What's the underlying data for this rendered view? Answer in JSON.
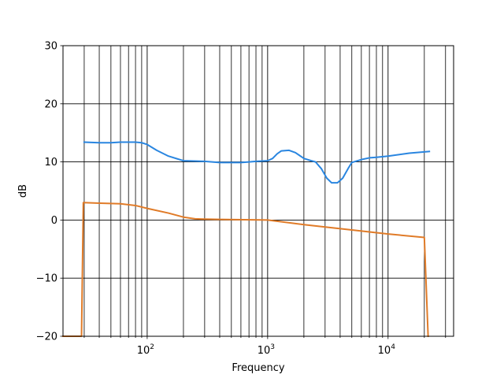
{
  "chart_data": {
    "type": "line",
    "title": "",
    "xlabel": "Frequency",
    "ylabel": "dB",
    "x_scale": "log",
    "xlim": [
      20,
      35000
    ],
    "ylim": [
      -20,
      30
    ],
    "yticks": [
      -20,
      -10,
      0,
      10,
      20,
      30
    ],
    "ytick_labels": [
      "−20",
      "−10",
      "0",
      "10",
      "20",
      "30"
    ],
    "xticks": [
      100,
      1000,
      10000
    ],
    "xtick_labels": [
      {
        "base": "10",
        "exp": "2"
      },
      {
        "base": "10",
        "exp": "3"
      },
      {
        "base": "10",
        "exp": "4"
      }
    ],
    "grid": "major and minor, black",
    "legend": "none",
    "series": [
      {
        "color": "#2a86e0",
        "points": [
          [
            30,
            13.4
          ],
          [
            40,
            13.3
          ],
          [
            50,
            13.3
          ],
          [
            60,
            13.4
          ],
          [
            70,
            13.4
          ],
          [
            80,
            13.4
          ],
          [
            90,
            13.3
          ],
          [
            100,
            13.0
          ],
          [
            120,
            12.0
          ],
          [
            150,
            11.0
          ],
          [
            200,
            10.2
          ],
          [
            300,
            10.1
          ],
          [
            400,
            9.9
          ],
          [
            500,
            9.9
          ],
          [
            600,
            9.9
          ],
          [
            700,
            10.0
          ],
          [
            800,
            10.1
          ],
          [
            1000,
            10.2
          ],
          [
            1100,
            10.6
          ],
          [
            1200,
            11.4
          ],
          [
            1300,
            11.9
          ],
          [
            1500,
            12.0
          ],
          [
            1700,
            11.6
          ],
          [
            2000,
            10.6
          ],
          [
            2300,
            10.2
          ],
          [
            2500,
            10.0
          ],
          [
            2800,
            8.8
          ],
          [
            3100,
            7.2
          ],
          [
            3400,
            6.4
          ],
          [
            3800,
            6.4
          ],
          [
            4200,
            7.2
          ],
          [
            4700,
            9.0
          ],
          [
            5000,
            9.9
          ],
          [
            6000,
            10.4
          ],
          [
            7000,
            10.7
          ],
          [
            8000,
            10.8
          ],
          [
            10000,
            11.0
          ],
          [
            15000,
            11.5
          ],
          [
            22000,
            11.8
          ]
        ]
      },
      {
        "color": "#e07b28",
        "points": [
          [
            20,
            -20
          ],
          [
            28.5,
            -20
          ],
          [
            29.5,
            3.0
          ],
          [
            40,
            2.9
          ],
          [
            60,
            2.8
          ],
          [
            80,
            2.5
          ],
          [
            100,
            2.0
          ],
          [
            150,
            1.2
          ],
          [
            200,
            0.5
          ],
          [
            250,
            0.2
          ],
          [
            400,
            0.1
          ],
          [
            1000,
            0.0
          ],
          [
            2000,
            -0.8
          ],
          [
            5000,
            -1.7
          ],
          [
            10000,
            -2.4
          ],
          [
            20000,
            -3.0
          ],
          [
            21500,
            -20
          ]
        ]
      }
    ]
  }
}
